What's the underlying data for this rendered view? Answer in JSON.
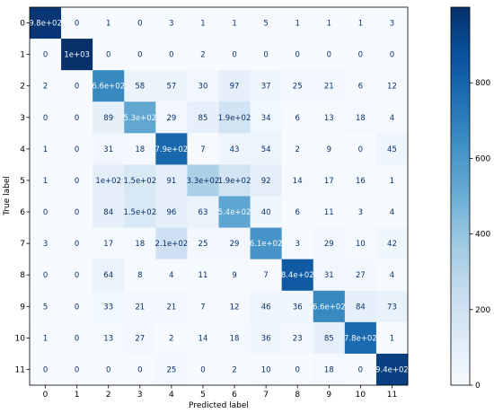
{
  "chart_data": {
    "type": "heatmap",
    "title": "",
    "xlabel": "Predicted label",
    "ylabel": "True label",
    "x_categories": [
      "0",
      "1",
      "2",
      "3",
      "4",
      "5",
      "6",
      "7",
      "8",
      "9",
      "10",
      "11"
    ],
    "y_categories": [
      "0",
      "1",
      "2",
      "3",
      "4",
      "5",
      "6",
      "7",
      "8",
      "9",
      "10",
      "11"
    ],
    "values": [
      [
        980,
        0,
        1,
        0,
        3,
        1,
        1,
        5,
        1,
        1,
        1,
        3
      ],
      [
        0,
        1000,
        0,
        0,
        0,
        2,
        0,
        0,
        0,
        0,
        0,
        0
      ],
      [
        2,
        0,
        660,
        58,
        57,
        30,
        97,
        37,
        25,
        21,
        6,
        12
      ],
      [
        0,
        0,
        89,
        530,
        29,
        85,
        190,
        34,
        6,
        13,
        18,
        4
      ],
      [
        1,
        0,
        31,
        18,
        790,
        7,
        43,
        54,
        2,
        9,
        0,
        45
      ],
      [
        1,
        0,
        100,
        150,
        91,
        330,
        190,
        92,
        14,
        17,
        16,
        1
      ],
      [
        0,
        0,
        84,
        150,
        96,
        63,
        540,
        40,
        6,
        11,
        3,
        4
      ],
      [
        3,
        0,
        17,
        18,
        210,
        25,
        29,
        610,
        3,
        29,
        10,
        42
      ],
      [
        0,
        0,
        64,
        8,
        4,
        11,
        9,
        7,
        840,
        31,
        27,
        4
      ],
      [
        5,
        0,
        33,
        21,
        21,
        7,
        12,
        46,
        36,
        660,
        84,
        73
      ],
      [
        1,
        0,
        13,
        27,
        2,
        14,
        18,
        36,
        23,
        85,
        780,
        1
      ],
      [
        0,
        0,
        0,
        0,
        25,
        0,
        2,
        10,
        0,
        18,
        0,
        940
      ]
    ],
    "cell_labels": [
      [
        "9.8e+02",
        "0",
        "1",
        "0",
        "3",
        "1",
        "1",
        "5",
        "1",
        "1",
        "1",
        "3"
      ],
      [
        "0",
        "1e+03",
        "0",
        "0",
        "0",
        "2",
        "0",
        "0",
        "0",
        "0",
        "0",
        "0"
      ],
      [
        "2",
        "0",
        "6.6e+02",
        "58",
        "57",
        "30",
        "97",
        "37",
        "25",
        "21",
        "6",
        "12"
      ],
      [
        "0",
        "0",
        "89",
        "5.3e+02",
        "29",
        "85",
        "1.9e+02",
        "34",
        "6",
        "13",
        "18",
        "4"
      ],
      [
        "1",
        "0",
        "31",
        "18",
        "7.9e+02",
        "7",
        "43",
        "54",
        "2",
        "9",
        "0",
        "45"
      ],
      [
        "1",
        "0",
        "1e+02",
        "1.5e+02",
        "91",
        "3.3e+02",
        "1.9e+02",
        "92",
        "14",
        "17",
        "16",
        "1"
      ],
      [
        "0",
        "0",
        "84",
        "1.5e+02",
        "96",
        "63",
        "5.4e+02",
        "40",
        "6",
        "11",
        "3",
        "4"
      ],
      [
        "3",
        "0",
        "17",
        "18",
        "2.1e+02",
        "25",
        "29",
        "6.1e+02",
        "3",
        "29",
        "10",
        "42"
      ],
      [
        "0",
        "0",
        "64",
        "8",
        "4",
        "11",
        "9",
        "7",
        "8.4e+02",
        "31",
        "27",
        "4"
      ],
      [
        "5",
        "0",
        "33",
        "21",
        "21",
        "7",
        "12",
        "46",
        "36",
        "6.6e+02",
        "84",
        "73"
      ],
      [
        "1",
        "0",
        "13",
        "27",
        "2",
        "14",
        "18",
        "36",
        "23",
        "85",
        "7.8e+02",
        "1"
      ],
      [
        "0",
        "0",
        "0",
        "0",
        "25",
        "0",
        "2",
        "10",
        "0",
        "18",
        "0",
        "9.4e+02"
      ]
    ],
    "colormap": "Blues",
    "vmin": 0,
    "vmax": 1000,
    "colorbar": {
      "ticks": [
        0,
        200,
        400,
        600,
        800
      ],
      "tick_labels": [
        "0",
        "200",
        "400",
        "600",
        "800"
      ]
    },
    "colors": {
      "low": "#f7fbff",
      "high": "#08306b",
      "text_dark": "#08306b",
      "text_light": "#f7fbff"
    },
    "grid": false,
    "legend": "colorbar right"
  }
}
